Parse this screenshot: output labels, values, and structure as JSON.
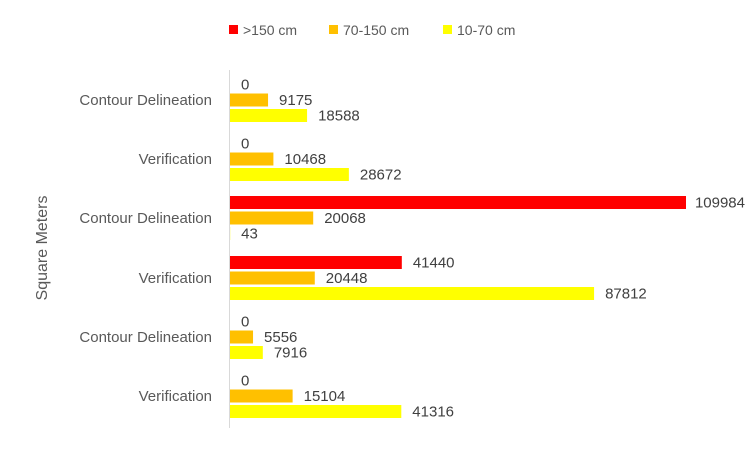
{
  "chart_data": {
    "type": "bar",
    "orientation": "horizontal",
    "ylabel": "Square Meters",
    "categories": [
      "Contour Delineation",
      "Verification",
      "Contour Delineation",
      "Verification",
      "Contour Delineation",
      "Verification"
    ],
    "series": [
      {
        "name": ">150 cm",
        "color": "#ff0000",
        "values": [
          0,
          0,
          109984,
          41440,
          0,
          0
        ]
      },
      {
        "name": "70-150 cm",
        "color": "#ffc000",
        "values": [
          9175,
          10468,
          20068,
          20448,
          5556,
          15104
        ]
      },
      {
        "name": "10-70 cm",
        "color": "#ffff00",
        "values": [
          18588,
          28672,
          43,
          87812,
          7916,
          41316
        ]
      }
    ],
    "xlim": [
      0,
      109984
    ],
    "legend": "top",
    "grid": false,
    "data_labels": true
  }
}
